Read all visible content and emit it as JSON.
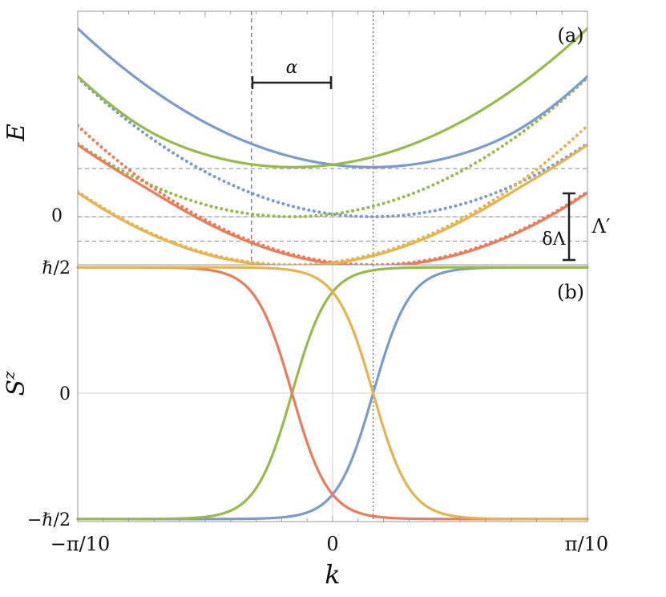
{
  "chart_data": [
    {
      "panel": "(a)",
      "type": "line",
      "ylabel": "E",
      "y_tick_labels": [
        {
          "value": 0,
          "label": "0"
        }
      ],
      "x_range": [
        -0.31416,
        0.31416
      ],
      "y_range": [
        -0.55,
        2.35
      ],
      "grid": true,
      "legend": "none",
      "params": {
        "curvature": 12.0,
        "shift_alpha": 0.1,
        "spin_gap": 0.55,
        "coupling": 0.055,
        "k_star": 0.05
      },
      "series": [
        {
          "branch": "upper",
          "shift": "+",
          "color": "#7b9ccb",
          "style": "solid"
        },
        {
          "branch": "upper",
          "shift": "-",
          "color": "#96bb4a",
          "style": "solid"
        },
        {
          "branch": "lower",
          "shift": "-",
          "color": "#ec7b5a",
          "style": "solid"
        },
        {
          "branch": "lower",
          "shift": "+",
          "color": "#e6b34e",
          "style": "solid"
        },
        {
          "branch": "bare-up",
          "shift": "+",
          "color": "#7b9ccb",
          "style": "dotted"
        },
        {
          "branch": "bare-up",
          "shift": "-",
          "color": "#96bb4a",
          "style": "dotted"
        },
        {
          "branch": "bare-down",
          "shift": "-",
          "color": "#ec7b5a",
          "style": "dotted"
        },
        {
          "branch": "bare-down",
          "shift": "+",
          "color": "#e6b34e",
          "style": "dotted"
        }
      ],
      "vertical_markers": [
        {
          "x": -0.1,
          "style": "dashed"
        },
        {
          "x": 0.05,
          "style": "dotted"
        }
      ],
      "horizontal_markers": [
        0.55,
        0.0,
        -0.28,
        -0.55
      ],
      "annotations": {
        "alpha": "α",
        "delta_lambda": "δΛ",
        "lambda_prime": "Λ′"
      }
    },
    {
      "panel": "(b)",
      "type": "line",
      "ylabel": "S",
      "ylabel_sup": "z",
      "xlabel": "k",
      "x_ticks": [
        {
          "value": -0.31416,
          "label": "−π/10"
        },
        {
          "value": 0,
          "label": "0"
        },
        {
          "value": 0.31416,
          "label": "π/10"
        }
      ],
      "y_ticks": [
        {
          "value": 1,
          "label": "ℏ/2"
        },
        {
          "value": 0,
          "label": "0"
        },
        {
          "value": -1,
          "label": "−ℏ/2"
        }
      ],
      "x_range": [
        -0.31416,
        0.31416
      ],
      "y_range": [
        -1.02,
        1.02
      ],
      "grid": true,
      "legend": "none",
      "series": [
        {
          "center": 0.05,
          "sign": 1,
          "color": "#7b9ccb"
        },
        {
          "center": -0.05,
          "sign": 1,
          "color": "#96bb4a"
        },
        {
          "center": -0.05,
          "sign": -1,
          "color": "#ec7b5a"
        },
        {
          "center": 0.05,
          "sign": -1,
          "color": "#e6b34e"
        }
      ],
      "vertical_markers": [
        {
          "x": 0.05,
          "style": "dotted"
        }
      ]
    }
  ]
}
